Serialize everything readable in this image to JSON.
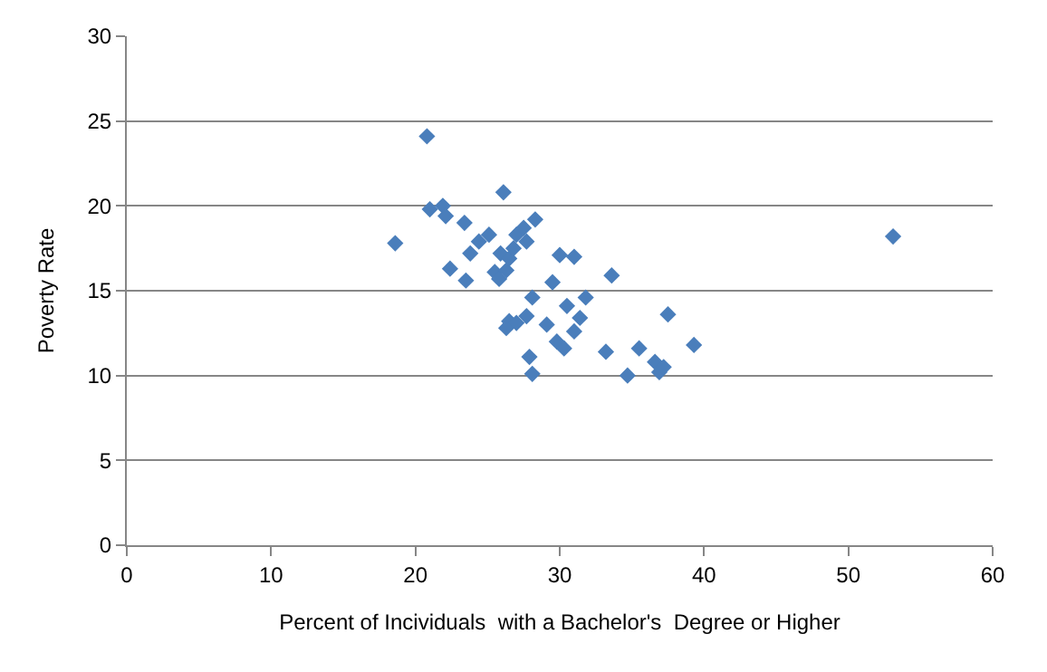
{
  "chart_data": {
    "type": "scatter",
    "xlabel": "Percent of Incividuals  with a Bachelor's  Degree or Higher",
    "ylabel": "Poverty Rate",
    "x": [
      20.8,
      18.6,
      21.0,
      21.9,
      22.1,
      26.1,
      23.4,
      22.4,
      23.5,
      23.8,
      24.4,
      25.1,
      25.5,
      25.8,
      26.3,
      25.9,
      26.5,
      26.8,
      27.0,
      27.5,
      27.7,
      28.3,
      26.5,
      26.3,
      27.0,
      27.7,
      28.1,
      27.9,
      28.1,
      29.1,
      29.5,
      30.0,
      31.0,
      30.5,
      29.8,
      30.3,
      31.0,
      31.4,
      31.8,
      33.6,
      33.2,
      34.7,
      35.5,
      36.6,
      36.9,
      37.2,
      37.5,
      39.3,
      53.1
    ],
    "series": [
      {
        "color": "#4a7ebb",
        "values": [
          24.1,
          17.8,
          19.8,
          20.0,
          19.4,
          20.8,
          19.0,
          16.3,
          15.6,
          17.2,
          17.9,
          18.3,
          16.1,
          15.7,
          16.2,
          17.2,
          16.9,
          17.5,
          18.3,
          18.7,
          17.9,
          19.2,
          13.2,
          12.8,
          13.1,
          13.5,
          14.6,
          11.1,
          10.1,
          13.0,
          15.5,
          17.1,
          17.0,
          14.1,
          12.0,
          11.6,
          12.6,
          13.4,
          14.6,
          15.9,
          11.4,
          10.0,
          11.6,
          10.8,
          10.2,
          10.5,
          13.6,
          11.8,
          18.2
        ]
      }
    ],
    "xlim": [
      0,
      60
    ],
    "xticks": [
      0,
      10,
      20,
      30,
      40,
      50,
      60
    ],
    "ylim": [
      0,
      30
    ],
    "yticks": [
      0,
      5,
      10,
      15,
      20,
      25,
      30
    ],
    "grid": "y",
    "marker": "diamond",
    "legend": false
  }
}
